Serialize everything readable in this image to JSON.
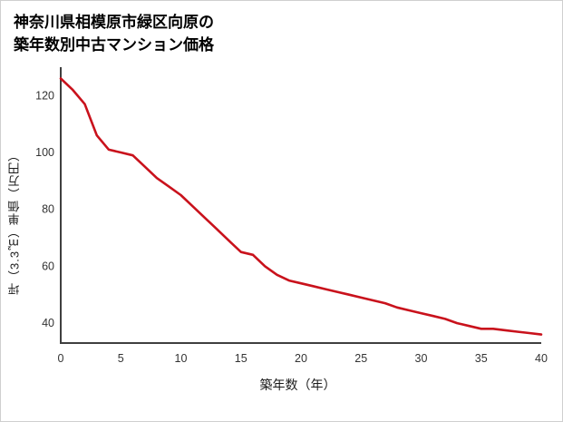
{
  "title": {
    "line1": "神奈川県相模原市緑区向原の",
    "line2": "築年数別中古マンション価格"
  },
  "chart_data": {
    "type": "line",
    "title": "神奈川県相模原市緑区向原の築年数別中古マンション価格",
    "xlabel": "築年数（年）",
    "ylabel": "坪（3.3㎡）単価（万円）",
    "x": [
      0,
      1,
      2,
      3,
      4,
      5,
      6,
      7,
      8,
      9,
      10,
      11,
      12,
      13,
      14,
      15,
      16,
      17,
      18,
      19,
      20,
      21,
      22,
      23,
      24,
      25,
      26,
      27,
      28,
      29,
      30,
      31,
      32,
      33,
      34,
      35,
      36,
      37,
      38,
      39,
      40
    ],
    "y": [
      126,
      122,
      117,
      106,
      101,
      100,
      99,
      95,
      91,
      88,
      85,
      81,
      77,
      73,
      69,
      65,
      64,
      60,
      57,
      55,
      54,
      53,
      52,
      51,
      50,
      49,
      48,
      47,
      45.5,
      44.5,
      43.5,
      42.5,
      41.5,
      40,
      39,
      38,
      38,
      37.5,
      37,
      36.5,
      36
    ],
    "xticks": [
      0,
      5,
      10,
      15,
      20,
      25,
      30,
      35,
      40
    ],
    "yticks": [
      40,
      60,
      80,
      100,
      120
    ],
    "xlim": [
      0,
      40
    ],
    "ylim": [
      33,
      130
    ],
    "grid": false,
    "legend": "none",
    "line_color": "#c9121c",
    "axis_color": "#3f3f3f"
  }
}
